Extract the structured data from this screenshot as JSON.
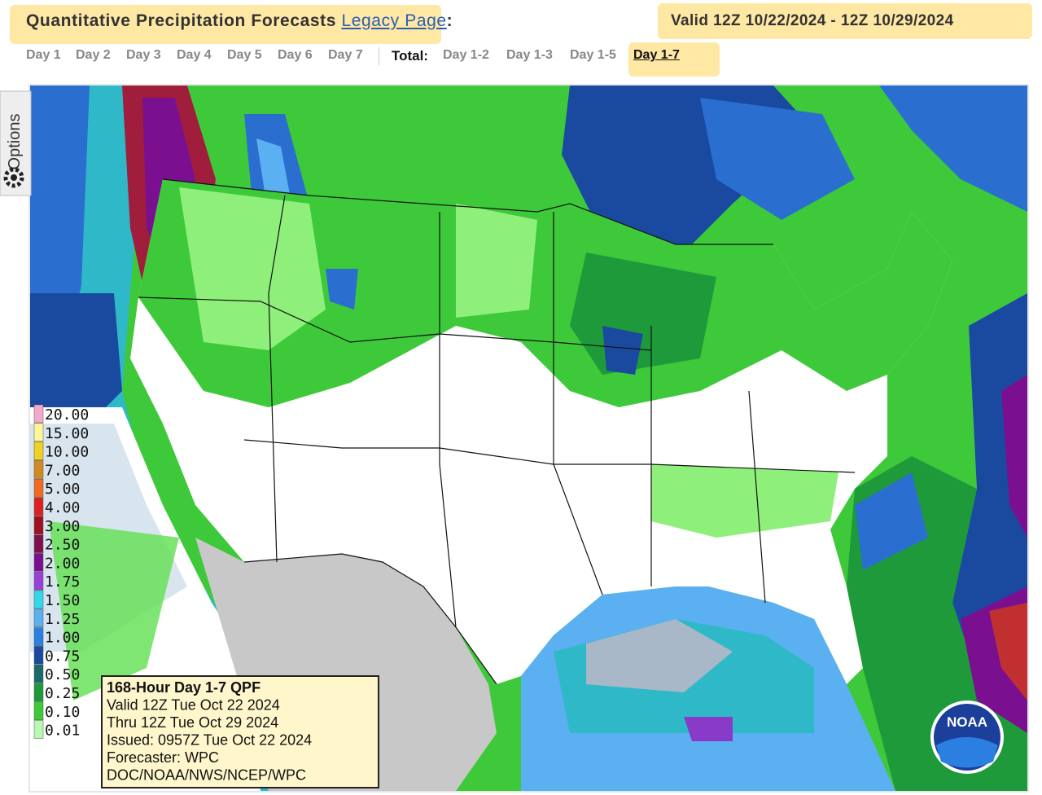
{
  "header": {
    "title": "Quantitative Precipitation Forecasts",
    "link": "Legacy Page",
    "colon": ":",
    "valid": "Valid 12Z 10/22/2024 - 12Z 10/29/2024"
  },
  "nav": {
    "days": [
      "Day 1",
      "Day 2",
      "Day 3",
      "Day 4",
      "Day 5",
      "Day 6",
      "Day 7"
    ],
    "total_label": "Total:",
    "totals": [
      "Day 1-2",
      "Day 1-3",
      "Day 1-5",
      "Day 1-7"
    ]
  },
  "options": "Options",
  "legend": {
    "values": [
      "20.00",
      "15.00",
      "10.00",
      "7.00",
      "5.00",
      "4.00",
      "3.00",
      "2.50",
      "2.00",
      "1.75",
      "1.50",
      "1.25",
      "1.00",
      "0.75",
      "0.50",
      "0.25",
      "0.10",
      "0.01"
    ]
  },
  "info_box": {
    "lines": [
      "168-Hour Day 1-7 QPF",
      "Valid 12Z Tue Oct 22 2024",
      "Thru 12Z Tue Oct 29 2024",
      "Issued: 0957Z Tue Oct 22 2024",
      "Forecaster: WPC",
      "DOC/NOAA/NWS/NCEP/WPC"
    ]
  },
  "logo": "NOAA"
}
